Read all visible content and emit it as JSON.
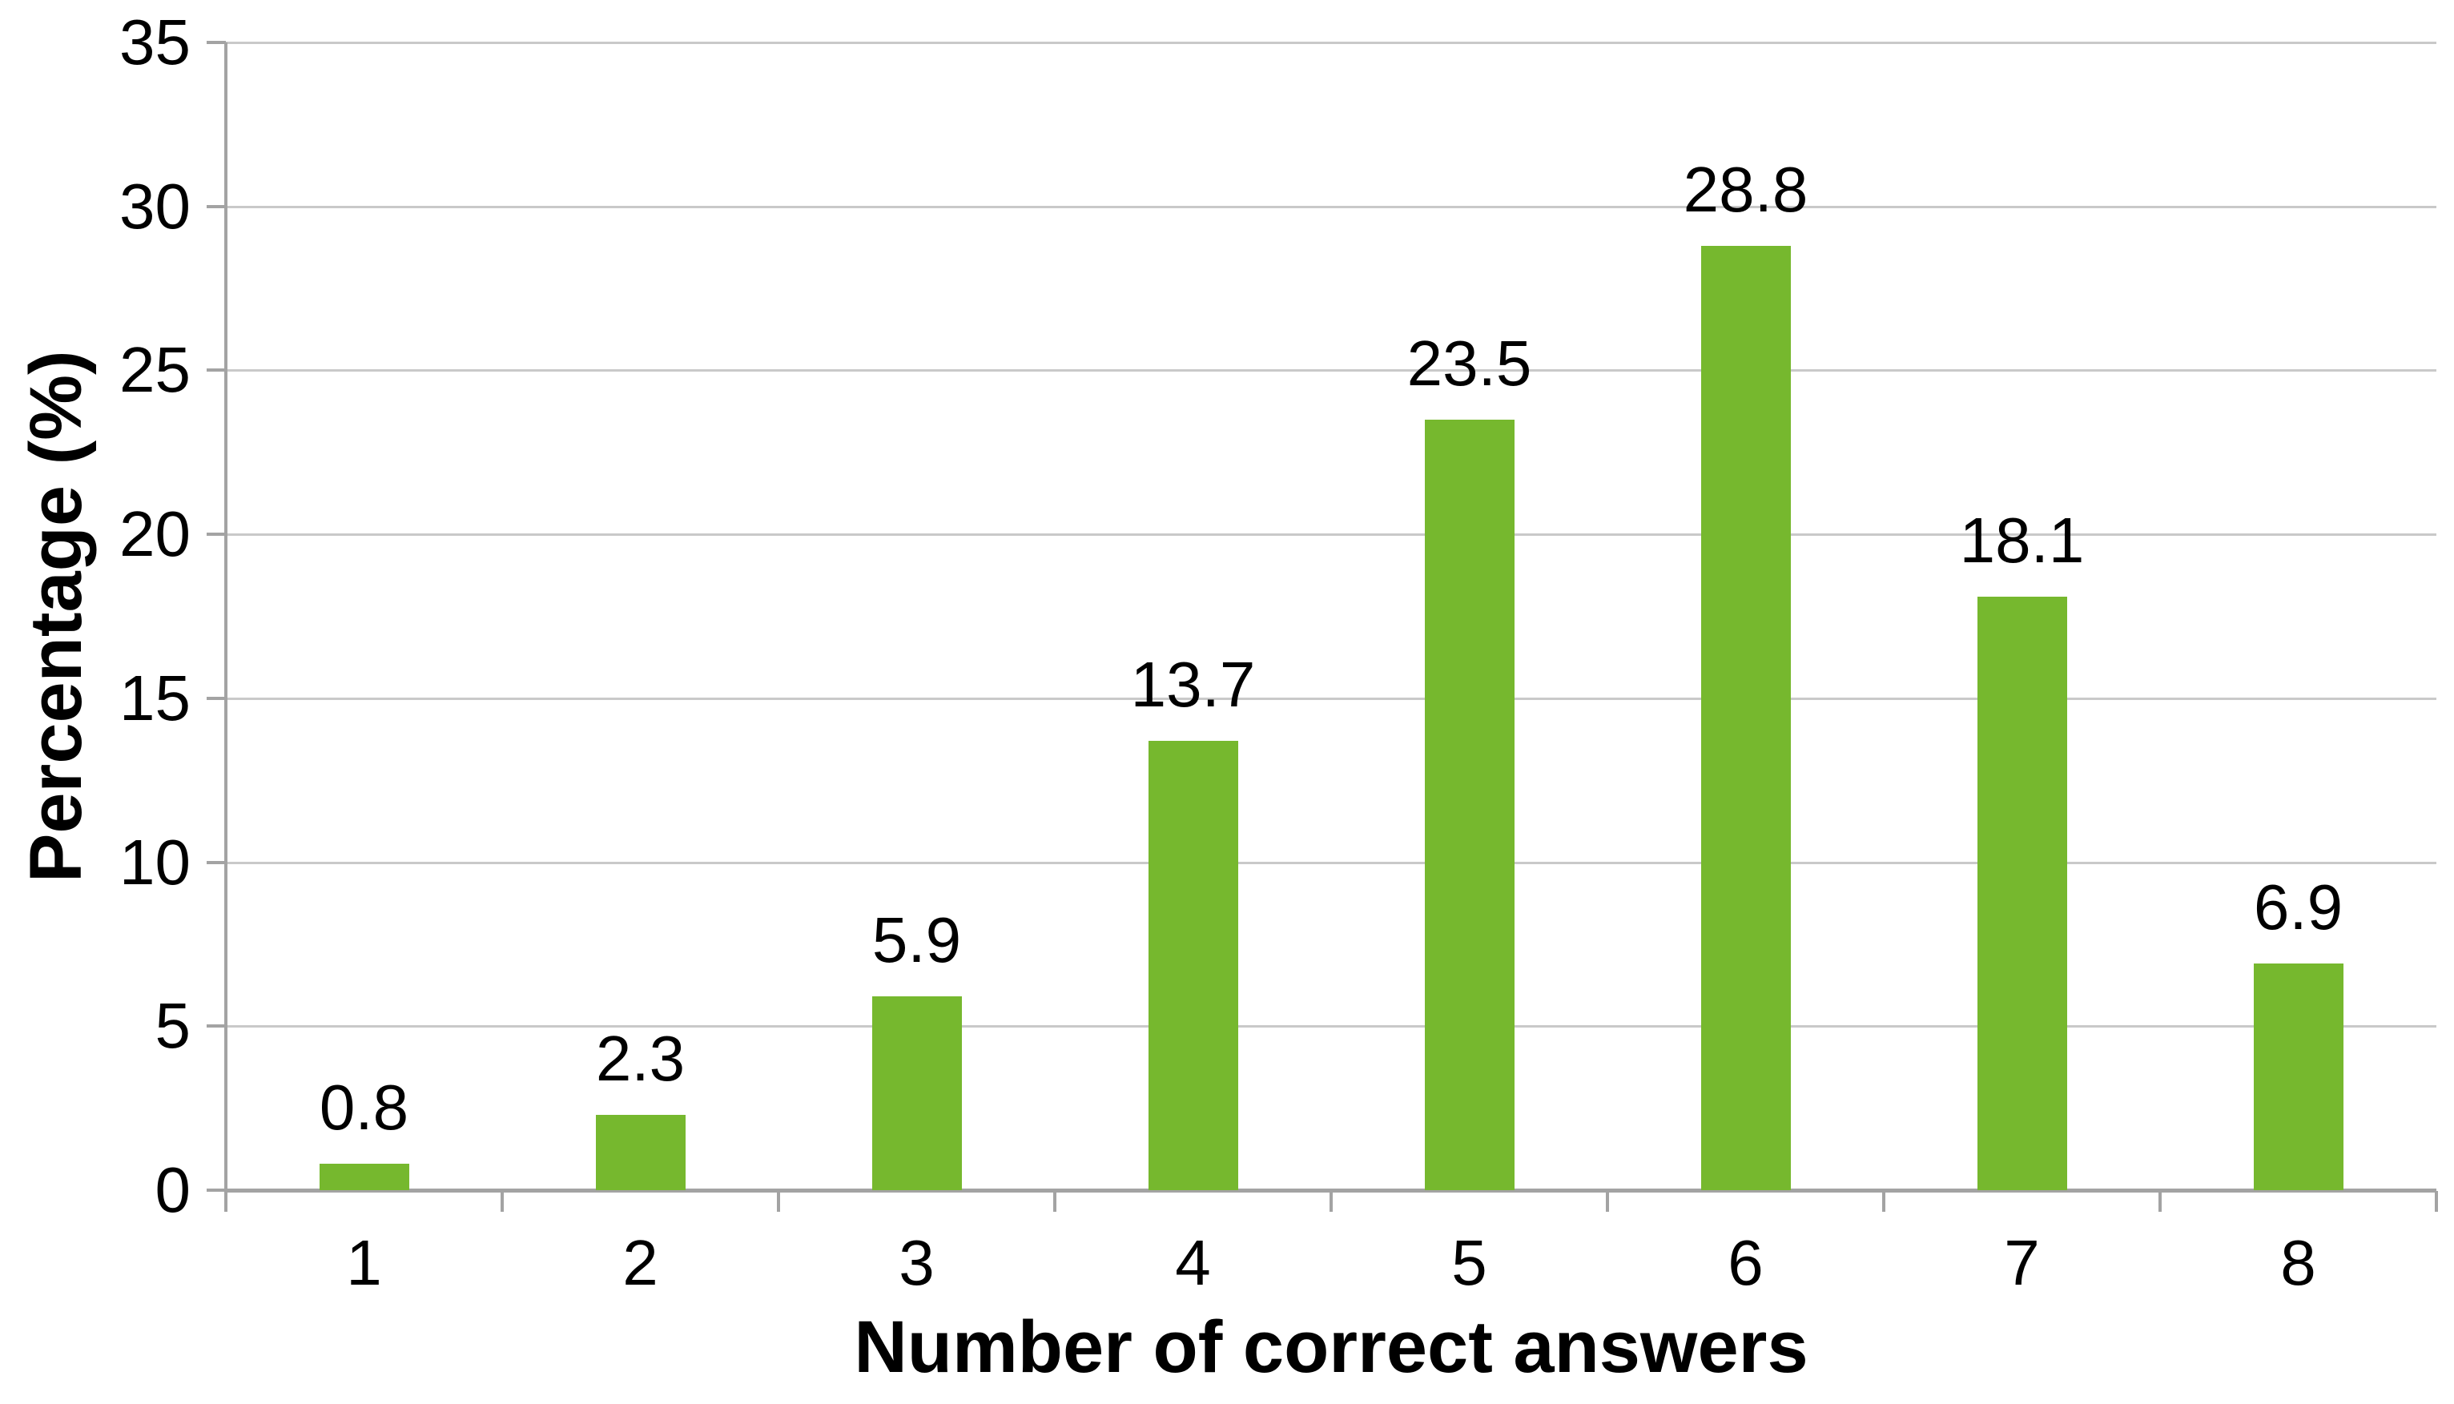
{
  "chart_data": {
    "type": "bar",
    "title": "",
    "categories": [
      "1",
      "2",
      "3",
      "4",
      "5",
      "6",
      "7",
      "8"
    ],
    "values": [
      0.8,
      2.3,
      5.9,
      13.7,
      23.5,
      28.8,
      18.1,
      6.9
    ],
    "value_labels": [
      "0.8",
      "2.3",
      "5.9",
      "13.7",
      "23.5",
      "28.8",
      "18.1",
      "6.9"
    ],
    "xlabel": "Number of correct answers",
    "ylabel": "Percentage (%)",
    "ylim": [
      0,
      35
    ],
    "yticks": [
      0,
      5,
      10,
      15,
      20,
      25,
      30,
      35
    ],
    "ytick_labels": [
      "0",
      "5",
      "10",
      "15",
      "20",
      "25",
      "30",
      "35"
    ],
    "grid": "horizontal",
    "legend_position": "none",
    "data_labels": "above-bars",
    "colors": {
      "bar": "#76B82E",
      "gridline": "#C9C9C9",
      "axis": "#A3A3A3",
      "text": "#000000",
      "background": "#FFFFFF"
    }
  }
}
